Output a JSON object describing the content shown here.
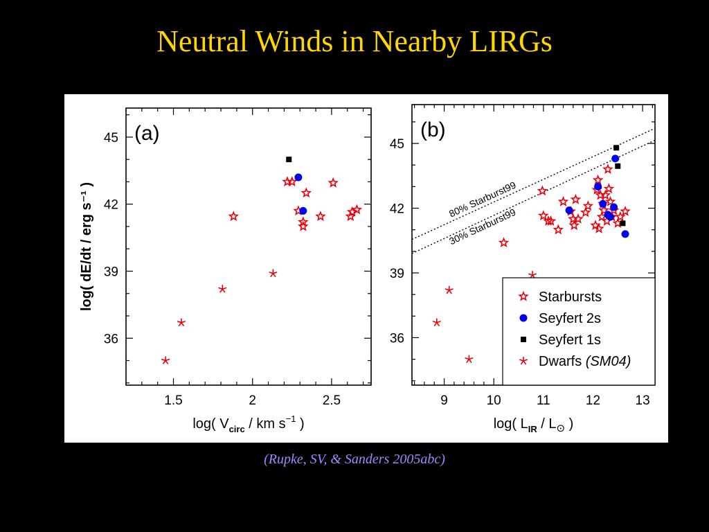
{
  "slide": {
    "title": "Neutral Winds in Nearby LIRGs",
    "citation": "(Rupke, SV, & Sanders 2005abc)",
    "title_color": "#FFD700",
    "citation_color": "#9C8CFF",
    "background": "#000000"
  },
  "legend": {
    "placement": "bottom-right of panel (b)",
    "entries": [
      {
        "label": "Starbursts",
        "marker": "star-open",
        "color": "#E8000B"
      },
      {
        "label": "Seyfert 2s",
        "marker": "circle",
        "color": "#0000EE"
      },
      {
        "label": "Seyfert 1s",
        "marker": "square",
        "color": "#000000"
      },
      {
        "label": "Dwarfs ",
        "label_italic": "(SM04)",
        "marker": "asterisk",
        "color": "#E8000B"
      }
    ]
  },
  "chart_data": [
    {
      "type": "scatter",
      "panel_label": "(a)",
      "xlabel_parts": [
        "log( V",
        "circ",
        " / km s",
        "−1",
        " )"
      ],
      "ylabel": "log( dE/dt / erg s⁻¹ )",
      "xlim": [
        1.2,
        2.75
      ],
      "ylim": [
        33.9,
        46.3
      ],
      "xticks": [
        {
          "v": 1.5,
          "label": "1.5"
        },
        {
          "v": 2.0,
          "label": "2"
        },
        {
          "v": 2.5,
          "label": "2.5"
        }
      ],
      "yticks": [
        {
          "v": 36,
          "label": "36"
        },
        {
          "v": 39,
          "label": "39"
        },
        {
          "v": 42,
          "label": "42"
        },
        {
          "v": 45,
          "label": "45"
        }
      ],
      "series": [
        {
          "marker": "star-open",
          "color": "#E8000B",
          "points": [
            [
              1.88,
              41.45
            ],
            [
              2.22,
              43.0
            ],
            [
              2.25,
              43.0
            ],
            [
              2.29,
              41.7
            ],
            [
              2.32,
              41.2
            ],
            [
              2.32,
              41.0
            ],
            [
              2.34,
              42.5
            ],
            [
              2.43,
              41.45
            ],
            [
              2.51,
              42.95
            ],
            [
              2.62,
              41.45
            ],
            [
              2.63,
              41.65
            ],
            [
              2.66,
              41.75
            ]
          ]
        },
        {
          "marker": "circle",
          "color": "#0000EE",
          "points": [
            [
              2.29,
              43.2
            ],
            [
              2.32,
              41.7
            ]
          ]
        },
        {
          "marker": "square",
          "color": "#000000",
          "points": [
            [
              2.23,
              44.0
            ]
          ]
        },
        {
          "marker": "asterisk",
          "color": "#E8000B",
          "points": [
            [
              1.45,
              35.0
            ],
            [
              1.55,
              36.7
            ],
            [
              1.81,
              38.2
            ],
            [
              2.13,
              38.9
            ]
          ]
        }
      ]
    },
    {
      "type": "scatter",
      "panel_label": "(b)",
      "xlabel_parts": [
        "log( L",
        "IR",
        " / L",
        "⊙",
        " )"
      ],
      "xlim": [
        8.35,
        13.25
      ],
      "ylim": [
        33.8,
        46.8
      ],
      "xticks": [
        {
          "v": 9,
          "label": "9"
        },
        {
          "v": 10,
          "label": "10"
        },
        {
          "v": 11,
          "label": "11"
        },
        {
          "v": 12,
          "label": "12"
        },
        {
          "v": 13,
          "label": "13"
        }
      ],
      "yticks": [
        {
          "v": 36,
          "label": "36"
        },
        {
          "v": 39,
          "label": "39"
        },
        {
          "v": 42,
          "label": "42"
        },
        {
          "v": 45,
          "label": "45"
        }
      ],
      "lines": [
        {
          "label": "80% Starburst99",
          "style": "dotted",
          "points": [
            [
              8.35,
              40.55
            ],
            [
              13.25,
              45.7
            ]
          ]
        },
        {
          "label": "30% Starburst99",
          "style": "dotted",
          "points": [
            [
              8.35,
              39.9
            ],
            [
              13.25,
              45.15
            ]
          ]
        }
      ],
      "series": [
        {
          "marker": "star-open",
          "color": "#E8000B",
          "points": [
            [
              10.2,
              40.4
            ],
            [
              10.98,
              42.8
            ],
            [
              11.0,
              41.65
            ],
            [
              11.1,
              41.4
            ],
            [
              11.15,
              41.4
            ],
            [
              11.3,
              41.0
            ],
            [
              11.4,
              42.3
            ],
            [
              11.55,
              41.85
            ],
            [
              11.6,
              41.5
            ],
            [
              11.62,
              41.2
            ],
            [
              11.65,
              42.4
            ],
            [
              11.7,
              41.5
            ],
            [
              11.85,
              41.8
            ],
            [
              11.9,
              42.1
            ],
            [
              12.05,
              41.2
            ],
            [
              12.08,
              42.85
            ],
            [
              12.1,
              43.3
            ],
            [
              12.12,
              41.05
            ],
            [
              12.15,
              42.6
            ],
            [
              12.18,
              41.6
            ],
            [
              12.2,
              42.2
            ],
            [
              12.22,
              41.9
            ],
            [
              12.25,
              42.6
            ],
            [
              12.28,
              41.4
            ],
            [
              12.3,
              43.8
            ],
            [
              12.32,
              42.9
            ],
            [
              12.35,
              42.3
            ],
            [
              12.38,
              41.6
            ],
            [
              12.42,
              41.9
            ],
            [
              12.5,
              41.3
            ],
            [
              12.55,
              41.6
            ],
            [
              12.65,
              41.85
            ]
          ]
        },
        {
          "marker": "circle",
          "color": "#0000EE",
          "points": [
            [
              11.52,
              41.9
            ],
            [
              12.1,
              43.0
            ],
            [
              12.2,
              42.2
            ],
            [
              12.3,
              41.7
            ],
            [
              12.35,
              41.6
            ],
            [
              12.42,
              42.05
            ],
            [
              12.45,
              44.3
            ],
            [
              12.65,
              40.8
            ]
          ]
        },
        {
          "marker": "square",
          "color": "#000000",
          "points": [
            [
              12.47,
              44.8
            ],
            [
              12.5,
              43.95
            ],
            [
              12.6,
              41.3
            ]
          ]
        },
        {
          "marker": "asterisk",
          "color": "#E8000B",
          "points": [
            [
              8.85,
              36.7
            ],
            [
              9.1,
              38.2
            ],
            [
              9.5,
              35.0
            ],
            [
              10.78,
              38.9
            ]
          ]
        }
      ]
    }
  ]
}
